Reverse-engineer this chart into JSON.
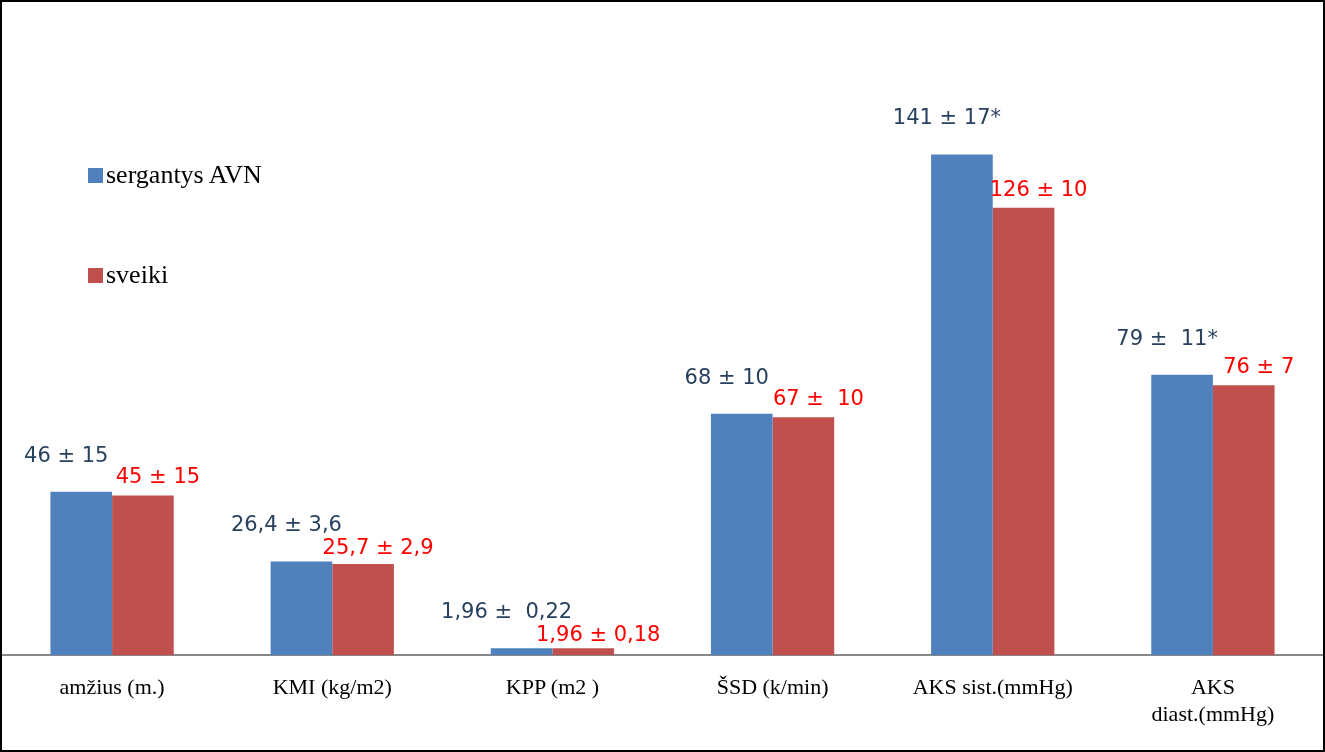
{
  "chart_data": {
    "type": "bar",
    "categories": [
      "amžius (m.)",
      "KMI (kg/m2)",
      "KPP (m2 )",
      "ŠSD (k/min)",
      "AKS sist.(mmHg)",
      "AKS diast.(mmHg)"
    ],
    "series": [
      {
        "name": "sergantys AVN",
        "color": "#4f81bd",
        "values": [
          46,
          26.4,
          1.96,
          68,
          141,
          79
        ],
        "value_labels": [
          "46 ± 15",
          "26,4 ± 3,6",
          "1,96 ±  0,22",
          "68 ± 10",
          "141 ± 17*",
          "79 ±  11*"
        ]
      },
      {
        "name": "sveiki",
        "color": "#c0504d",
        "values": [
          45,
          25.7,
          1.96,
          67,
          126,
          76
        ],
        "value_labels": [
          "45 ± 15",
          "25,7 ± 2,9",
          "1,96 ± 0,18",
          "67 ±  10",
          "126 ± 10",
          "76 ± 7"
        ]
      }
    ],
    "tick_labels": "x",
    "grid": false,
    "legend": "top left"
  }
}
